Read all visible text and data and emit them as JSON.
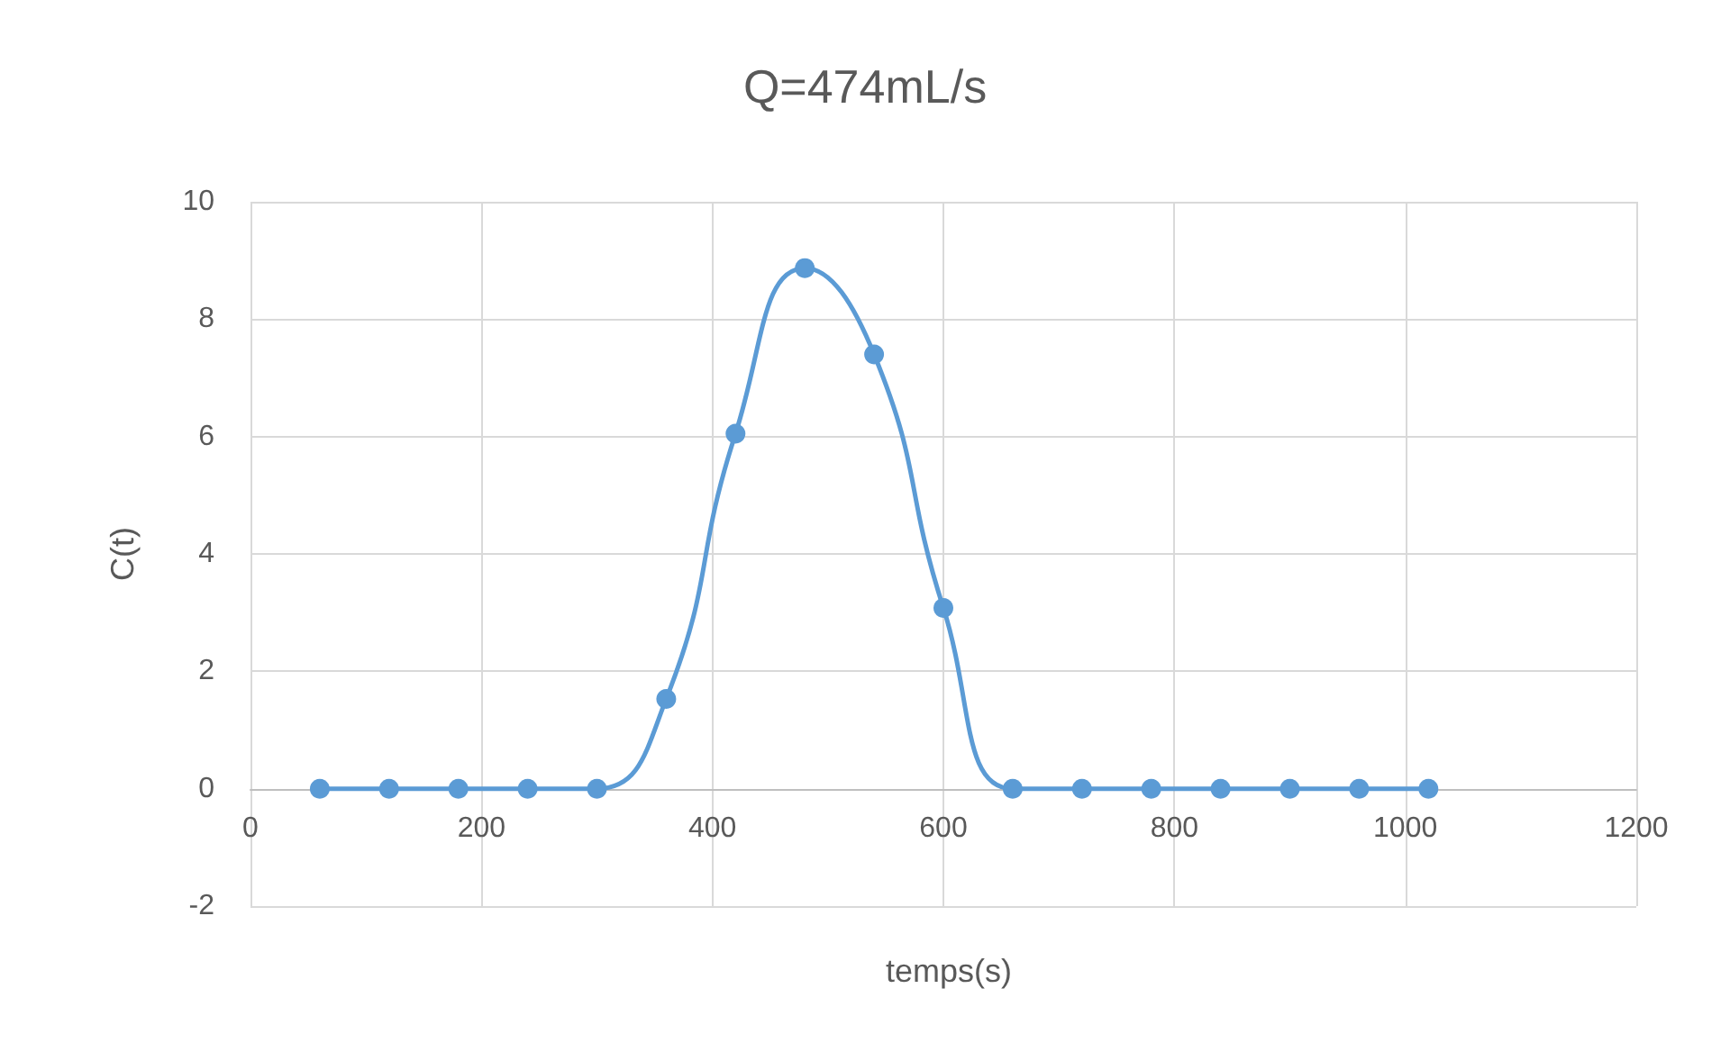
{
  "chart_data": {
    "type": "line",
    "title": "Q=474mL/s",
    "xlabel": "temps(s)",
    "ylabel": "C(t)",
    "x": [
      60,
      120,
      180,
      240,
      300,
      360,
      420,
      480,
      540,
      600,
      660,
      720,
      780,
      840,
      900,
      960,
      1020
    ],
    "series": [
      {
        "color": "#5b9bd5",
        "values": [
          0,
          0,
          0,
          0,
          0,
          1.53,
          6.05,
          8.87,
          7.4,
          3.08,
          0,
          0,
          0,
          0,
          0,
          0,
          0
        ]
      }
    ],
    "xlim": [
      0,
      1200
    ],
    "xticks": [
      0,
      200,
      400,
      600,
      800,
      1000,
      1200
    ],
    "ylim": [
      -2,
      10
    ],
    "yticks": [
      -2,
      0,
      2,
      4,
      6,
      8,
      10
    ],
    "grid": true,
    "marker": "circle",
    "line_style": "solid"
  }
}
